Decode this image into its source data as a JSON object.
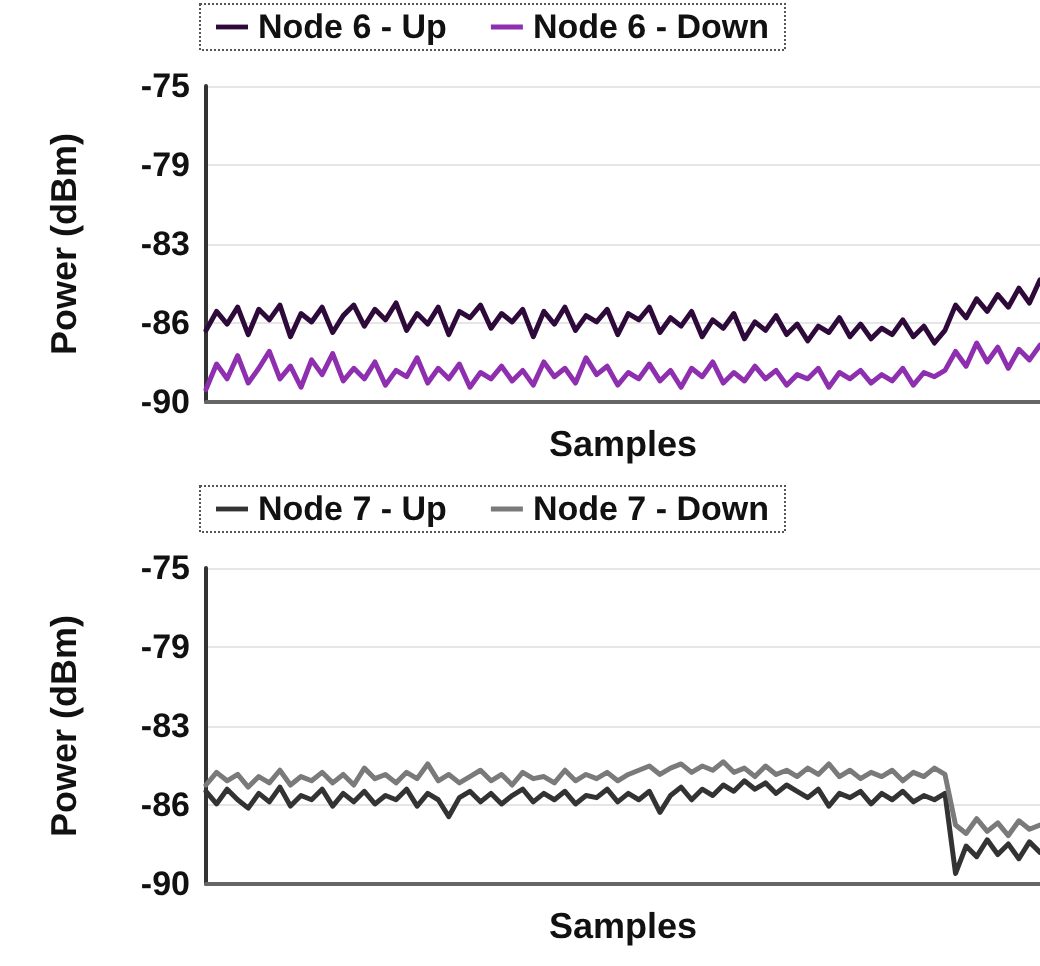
{
  "chart_data": [
    {
      "type": "line",
      "xlabel": "Samples",
      "ylabel": "Power (dBm)",
      "categories": [
        null,
        null,
        null,
        null,
        null,
        null,
        null,
        null,
        null,
        null,
        null,
        null,
        null,
        null,
        null,
        null,
        null,
        null,
        null,
        null,
        null,
        null,
        null,
        null,
        null,
        null,
        null,
        null,
        null,
        null,
        null,
        null,
        null,
        null,
        null,
        null,
        null,
        null,
        null,
        null,
        null,
        null,
        null,
        null,
        null,
        null,
        null,
        null,
        null,
        null,
        null,
        null,
        null,
        null,
        null,
        null,
        null,
        null,
        null,
        null,
        null,
        null,
        null,
        null,
        null,
        null,
        null,
        null,
        null,
        null,
        null,
        null,
        null,
        null,
        null,
        null,
        null,
        null,
        null,
        null
      ],
      "series": [
        {
          "name": "Node 6 - Up",
          "color": "#2e0a3a",
          "values": [
            -86.6,
            -85.7,
            -86.3,
            -85.5,
            -86.8,
            -85.6,
            -86.1,
            -85.4,
            -86.9,
            -85.8,
            -86.2,
            -85.5,
            -86.7,
            -85.9,
            -85.4,
            -86.4,
            -85.6,
            -86.1,
            -85.3,
            -86.6,
            -85.8,
            -86.3,
            -85.5,
            -86.8,
            -85.7,
            -86.0,
            -85.4,
            -86.5,
            -85.8,
            -86.2,
            -85.6,
            -86.9,
            -85.7,
            -86.3,
            -85.5,
            -86.6,
            -85.9,
            -86.2,
            -85.6,
            -86.8,
            -85.8,
            -86.1,
            -85.5,
            -86.7,
            -86.0,
            -86.4,
            -85.7,
            -86.9,
            -86.1,
            -86.5,
            -85.8,
            -87.0,
            -86.2,
            -86.6,
            -85.9,
            -86.8,
            -86.3,
            -87.1,
            -86.4,
            -86.7,
            -86.0,
            -86.9,
            -86.3,
            -87.0,
            -86.5,
            -86.8,
            -86.1,
            -86.9,
            -86.4,
            -87.2,
            -86.6,
            -85.4,
            -86.0,
            -85.1,
            -85.7,
            -84.9,
            -85.5,
            -84.6,
            -85.3,
            -84.2
          ]
        },
        {
          "name": "Node 6 - Down",
          "color": "#8e2fb0",
          "values": [
            -89.4,
            -88.2,
            -88.9,
            -87.8,
            -89.1,
            -88.4,
            -87.6,
            -88.9,
            -88.3,
            -89.3,
            -88.0,
            -88.7,
            -87.7,
            -89.0,
            -88.4,
            -88.9,
            -88.1,
            -89.2,
            -88.5,
            -88.8,
            -87.9,
            -89.1,
            -88.4,
            -88.9,
            -88.2,
            -89.3,
            -88.6,
            -88.9,
            -88.3,
            -89.0,
            -88.5,
            -89.2,
            -88.1,
            -88.8,
            -88.4,
            -89.1,
            -87.9,
            -88.7,
            -88.3,
            -89.2,
            -88.6,
            -88.9,
            -88.2,
            -89.0,
            -88.5,
            -89.3,
            -88.4,
            -88.8,
            -88.1,
            -89.1,
            -88.6,
            -89.0,
            -88.3,
            -88.9,
            -88.5,
            -89.2,
            -88.7,
            -88.9,
            -88.4,
            -89.3,
            -88.6,
            -88.9,
            -88.5,
            -89.1,
            -88.7,
            -89.0,
            -88.4,
            -89.2,
            -88.6,
            -88.8,
            -88.5,
            -87.6,
            -88.3,
            -87.2,
            -88.1,
            -87.4,
            -88.4,
            -87.5,
            -88.0,
            -87.3
          ]
        }
      ],
      "ylim": [
        -90,
        -75
      ],
      "yticks": [
        {
          "value": -90,
          "label": "-90"
        },
        {
          "value": -86.25,
          "label": "-86"
        },
        {
          "value": -82.5,
          "label": "-83"
        },
        {
          "value": -78.75,
          "label": "-79"
        },
        {
          "value": -75,
          "label": "-75"
        }
      ],
      "grid": "y",
      "legend": "top",
      "tick_labels": "y",
      "line_style": "solid"
    },
    {
      "type": "line",
      "xlabel": "Samples",
      "ylabel": "Power (dBm)",
      "categories": [
        null,
        null,
        null,
        null,
        null,
        null,
        null,
        null,
        null,
        null,
        null,
        null,
        null,
        null,
        null,
        null,
        null,
        null,
        null,
        null,
        null,
        null,
        null,
        null,
        null,
        null,
        null,
        null,
        null,
        null,
        null,
        null,
        null,
        null,
        null,
        null,
        null,
        null,
        null,
        null,
        null,
        null,
        null,
        null,
        null,
        null,
        null,
        null,
        null,
        null,
        null,
        null,
        null,
        null,
        null,
        null,
        null,
        null,
        null,
        null,
        null,
        null,
        null,
        null,
        null,
        null,
        null,
        null,
        null,
        null,
        null,
        null,
        null,
        null,
        null,
        null,
        null,
        null,
        null,
        null
      ],
      "series": [
        {
          "name": "Node 7 - Up",
          "color": "#333333",
          "values": [
            -85.6,
            -86.2,
            -85.5,
            -86.0,
            -86.4,
            -85.7,
            -86.1,
            -85.4,
            -86.3,
            -85.8,
            -86.0,
            -85.5,
            -86.3,
            -85.7,
            -86.1,
            -85.6,
            -86.2,
            -85.8,
            -86.0,
            -85.5,
            -86.3,
            -85.7,
            -86.0,
            -86.8,
            -85.9,
            -85.6,
            -86.1,
            -85.7,
            -86.2,
            -85.8,
            -85.5,
            -86.1,
            -85.7,
            -86.0,
            -85.6,
            -86.2,
            -85.8,
            -85.9,
            -85.5,
            -86.1,
            -85.7,
            -86.0,
            -85.6,
            -86.6,
            -85.8,
            -85.4,
            -86.0,
            -85.5,
            -85.8,
            -85.3,
            -85.6,
            -85.1,
            -85.5,
            -85.2,
            -85.7,
            -85.3,
            -85.6,
            -85.9,
            -85.5,
            -86.3,
            -85.7,
            -85.9,
            -85.6,
            -86.2,
            -85.7,
            -86.0,
            -85.6,
            -86.1,
            -85.8,
            -86.0,
            -85.7,
            -89.5,
            -88.2,
            -88.7,
            -87.9,
            -88.6,
            -88.1,
            -88.8,
            -88.0,
            -88.5
          ]
        },
        {
          "name": "Node 7 - Down",
          "color": "#7a7a7a",
          "values": [
            -85.3,
            -84.7,
            -85.1,
            -84.8,
            -85.4,
            -84.9,
            -85.2,
            -84.6,
            -85.3,
            -84.9,
            -85.1,
            -84.7,
            -85.2,
            -84.8,
            -85.3,
            -84.5,
            -85.0,
            -84.8,
            -85.2,
            -84.7,
            -85.0,
            -84.3,
            -85.1,
            -84.8,
            -85.2,
            -84.9,
            -84.6,
            -85.1,
            -84.8,
            -85.3,
            -84.7,
            -85.0,
            -84.9,
            -85.2,
            -84.6,
            -85.1,
            -84.8,
            -85.0,
            -84.7,
            -85.1,
            -84.8,
            -84.6,
            -84.4,
            -84.8,
            -84.5,
            -84.3,
            -84.7,
            -84.4,
            -84.6,
            -84.2,
            -84.7,
            -84.5,
            -84.9,
            -84.4,
            -84.8,
            -84.6,
            -84.9,
            -84.5,
            -84.8,
            -84.3,
            -84.9,
            -84.6,
            -85.0,
            -84.7,
            -84.9,
            -84.6,
            -85.1,
            -84.7,
            -84.9,
            -84.5,
            -84.8,
            -87.2,
            -87.6,
            -86.9,
            -87.5,
            -87.1,
            -87.7,
            -87.0,
            -87.4,
            -87.2
          ]
        }
      ],
      "ylim": [
        -90,
        -75
      ],
      "yticks": [
        {
          "value": -90,
          "label": "-90"
        },
        {
          "value": -86.25,
          "label": "-86"
        },
        {
          "value": -82.5,
          "label": "-83"
        },
        {
          "value": -78.75,
          "label": "-79"
        },
        {
          "value": -75,
          "label": "-75"
        }
      ],
      "grid": "y",
      "legend": "top",
      "tick_labels": "y",
      "line_style": "solid"
    }
  ]
}
